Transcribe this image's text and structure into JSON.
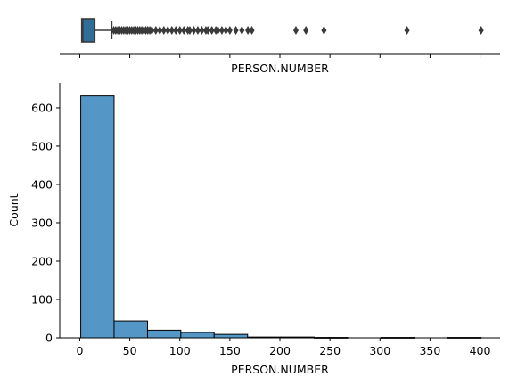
{
  "chart_data": [
    {
      "type": "boxplot",
      "xlabel": "PERSON.NUMBER",
      "xlim": [
        -20,
        420
      ],
      "box": {
        "min": 1,
        "q1": 2,
        "median": 3,
        "q3": 15,
        "whisker_high": 32
      },
      "outliers": [
        34,
        36,
        38,
        40,
        42,
        44,
        46,
        48,
        50,
        52,
        54,
        56,
        58,
        60,
        62,
        64,
        66,
        68,
        70,
        72,
        76,
        80,
        84,
        88,
        92,
        96,
        100,
        104,
        108,
        110,
        114,
        118,
        122,
        126,
        128,
        132,
        136,
        138,
        142,
        146,
        150,
        156,
        162,
        168,
        172,
        216,
        226,
        244,
        327,
        401
      ],
      "colors": {
        "box": "#2e6f9a",
        "line": "#3a3a3a",
        "outlier": "#3a3a3a"
      }
    },
    {
      "type": "histogram",
      "xlabel": "PERSON.NUMBER",
      "ylabel": "Count",
      "xlim": [
        -20,
        420
      ],
      "ylim": [
        0,
        665
      ],
      "xticks": [
        0,
        50,
        100,
        150,
        200,
        250,
        300,
        350,
        400
      ],
      "yticks": [
        0,
        100,
        200,
        300,
        400,
        500,
        600
      ],
      "bins": [
        {
          "x0": 1,
          "x1": 34.3,
          "count": 631
        },
        {
          "x0": 34.3,
          "x1": 67.7,
          "count": 44
        },
        {
          "x0": 67.7,
          "x1": 101,
          "count": 20
        },
        {
          "x0": 101,
          "x1": 134.3,
          "count": 14
        },
        {
          "x0": 134.3,
          "x1": 167.7,
          "count": 9
        },
        {
          "x0": 167.7,
          "x1": 201,
          "count": 2
        },
        {
          "x0": 201,
          "x1": 234.3,
          "count": 2
        },
        {
          "x0": 234.3,
          "x1": 267.7,
          "count": 1
        },
        {
          "x0": 267.7,
          "x1": 301,
          "count": 0
        },
        {
          "x0": 301,
          "x1": 334.3,
          "count": 1
        },
        {
          "x0": 334.3,
          "x1": 367.7,
          "count": 0
        },
        {
          "x0": 367.7,
          "x1": 401,
          "count": 1
        }
      ],
      "colors": {
        "bar_fill": "#5497c7",
        "bar_edge": "#000000"
      }
    }
  ]
}
